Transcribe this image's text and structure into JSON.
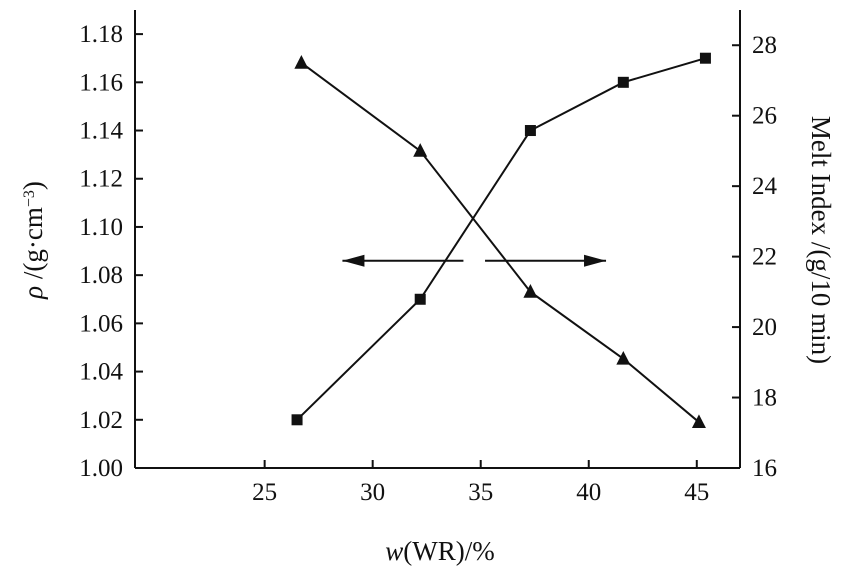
{
  "chart_data": {
    "type": "line",
    "title": "",
    "x": {
      "label_italic": "w",
      "label_rest": "(WR)/%",
      "range": [
        19,
        47
      ],
      "ticks": [
        25,
        30,
        35,
        40,
        45
      ]
    },
    "y_left": {
      "label_italic": "ρ",
      "label_rest": " /(g·cm",
      "label_sup": "−3",
      "label_end": ")",
      "range": [
        1.0,
        1.19
      ],
      "ticks": [
        1.0,
        1.02,
        1.04,
        1.06,
        1.08,
        1.1,
        1.12,
        1.14,
        1.16,
        1.18
      ],
      "tick_labels": [
        "1.00",
        "1.02",
        "1.04",
        "1.06",
        "1.08",
        "1.10",
        "1.12",
        "1.14",
        "1.16",
        "1.18"
      ]
    },
    "y_right": {
      "label": "Melt Index /(g/10 min)",
      "range": [
        16,
        29
      ],
      "ticks": [
        16,
        18,
        20,
        22,
        24,
        26,
        28
      ]
    },
    "series": [
      {
        "axis": "left",
        "marker": "square",
        "points": [
          [
            26.5,
            1.02
          ],
          [
            32.2,
            1.07
          ],
          [
            37.3,
            1.14
          ],
          [
            41.6,
            1.16
          ],
          [
            45.4,
            1.17
          ]
        ]
      },
      {
        "axis": "right",
        "marker": "triangle",
        "points": [
          [
            26.7,
            27.5
          ],
          [
            32.2,
            25.0
          ],
          [
            37.3,
            21.0
          ],
          [
            41.6,
            19.1
          ],
          [
            45.1,
            17.3
          ]
        ]
      }
    ],
    "annotations": [
      {
        "type": "arrow",
        "direction": "left",
        "from": [
          34.2,
          1.086
        ],
        "to": [
          28.6,
          1.086
        ]
      },
      {
        "type": "arrow",
        "direction": "right",
        "from": [
          35.2,
          1.086
        ],
        "to": [
          40.8,
          1.086
        ]
      }
    ],
    "grid": false,
    "legend": "none"
  }
}
